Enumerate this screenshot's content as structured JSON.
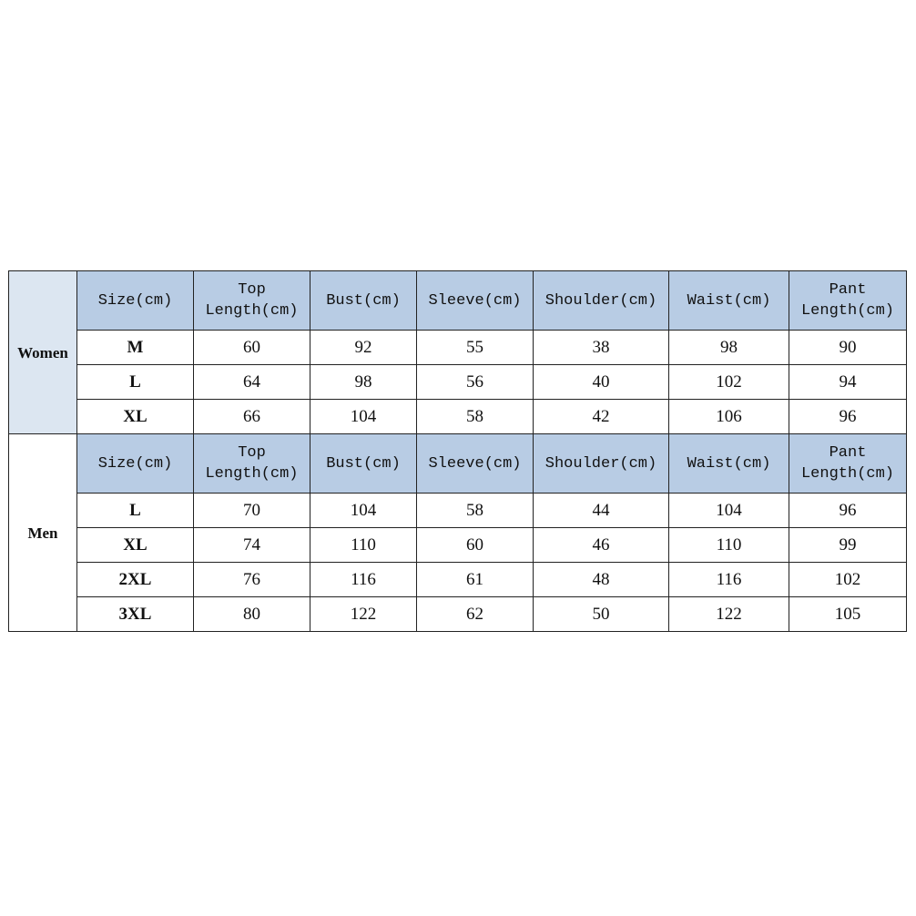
{
  "headers": [
    "Size(cm)",
    "Top\nLength(cm)",
    "Bust(cm)",
    "Sleeve(cm)",
    "Shoulder(cm)",
    "Waist(cm)",
    "Pant\nLength(cm)"
  ],
  "colors": {
    "header_bg": "#b8cce4",
    "women_bg": "#dce6f1",
    "border": "#222222"
  },
  "groups": [
    {
      "label": "Women",
      "rows": [
        [
          "M",
          "60",
          "92",
          "55",
          "38",
          "98",
          "90"
        ],
        [
          "L",
          "64",
          "98",
          "56",
          "40",
          "102",
          "94"
        ],
        [
          "XL",
          "66",
          "104",
          "58",
          "42",
          "106",
          "96"
        ]
      ]
    },
    {
      "label": "Men",
      "rows": [
        [
          "L",
          "70",
          "104",
          "58",
          "44",
          "104",
          "96"
        ],
        [
          "XL",
          "74",
          "110",
          "60",
          "46",
          "110",
          "99"
        ],
        [
          "2XL",
          "76",
          "116",
          "61",
          "48",
          "116",
          "102"
        ],
        [
          "3XL",
          "80",
          "122",
          "62",
          "50",
          "122",
          "105"
        ]
      ]
    }
  ]
}
